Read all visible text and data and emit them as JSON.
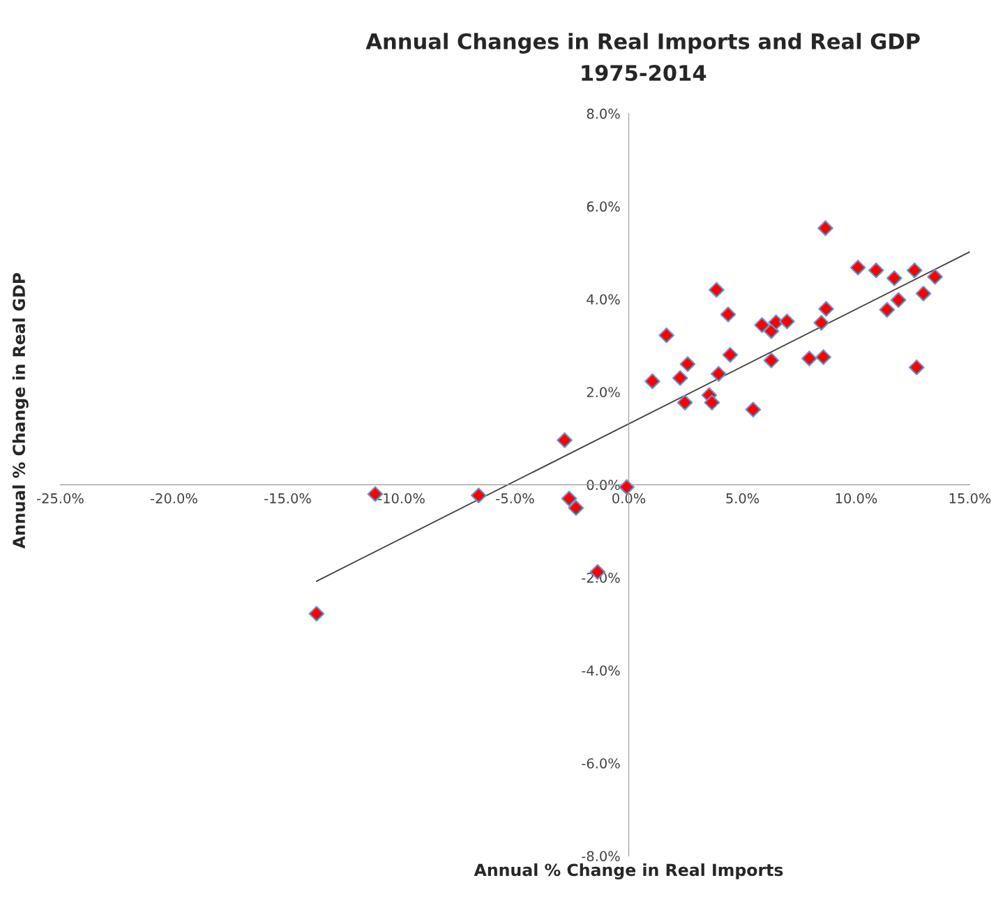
{
  "chart_data": {
    "type": "scatter",
    "title": "Annual Changes in Real Imports and Real GDP",
    "subtitle": "1975-2014",
    "xlabel": "Annual % Change in Real Imports",
    "ylabel": "Annual % Change in Real GDP",
    "xlim": [
      -25,
      15
    ],
    "ylim": [
      -8,
      8
    ],
    "xticks": [
      {
        "value": -25,
        "label": "-25.0%"
      },
      {
        "value": -20,
        "label": "-20.0%"
      },
      {
        "value": -15,
        "label": "-15.0%"
      },
      {
        "value": -10,
        "label": "-10.0%"
      },
      {
        "value": -5,
        "label": "-5.0%"
      },
      {
        "value": 0,
        "label": "0.0%"
      },
      {
        "value": 5,
        "label": "5.0%"
      },
      {
        "value": 10,
        "label": "10.0%"
      },
      {
        "value": 15,
        "label": "15.0%"
      }
    ],
    "yticks": [
      {
        "value": -8,
        "label": "-8.0%"
      },
      {
        "value": -6,
        "label": "-6.0%"
      },
      {
        "value": -4,
        "label": "-4.0%"
      },
      {
        "value": -2,
        "label": "-2.0%"
      },
      {
        "value": 0,
        "label": "0.0%"
      },
      {
        "value": 2,
        "label": "2.0%"
      },
      {
        "value": 4,
        "label": "4.0%"
      },
      {
        "value": 6,
        "label": "6.0%"
      },
      {
        "value": 8,
        "label": "8.0%"
      }
    ],
    "grid": false,
    "legend": false,
    "series": [
      {
        "marker": "diamond",
        "color": "#ff0000",
        "x": [
          -13.73,
          -11.15,
          -6.6,
          -2.82,
          -2.62,
          -2.32,
          -1.37,
          -0.09,
          1.04,
          1.66,
          2.26,
          2.47,
          2.59,
          3.54,
          3.66,
          3.86,
          3.95,
          4.37,
          4.46,
          5.47,
          5.86,
          6.27,
          6.27,
          6.48,
          6.96,
          7.94,
          8.47,
          8.56,
          8.68,
          8.65,
          10.08,
          10.88,
          11.36,
          11.68,
          11.86,
          12.57,
          12.66,
          12.96,
          13.47
        ],
        "values": [
          -2.78,
          -0.2,
          -0.23,
          0.96,
          -0.3,
          -0.5,
          -1.88,
          -0.05,
          2.23,
          3.22,
          2.3,
          1.77,
          2.6,
          1.93,
          1.77,
          4.2,
          2.39,
          3.67,
          2.8,
          1.62,
          3.44,
          2.68,
          3.31,
          3.5,
          3.52,
          2.72,
          3.49,
          2.75,
          3.79,
          5.53,
          4.68,
          4.62,
          3.77,
          4.45,
          3.98,
          4.62,
          2.53,
          4.12,
          4.48
        ]
      },
      {
        "type": "line",
        "marker": "none",
        "color": "#404040",
        "x": [
          -13.73,
          15.0
        ],
        "values": [
          -2.08,
          5.02
        ]
      }
    ]
  }
}
